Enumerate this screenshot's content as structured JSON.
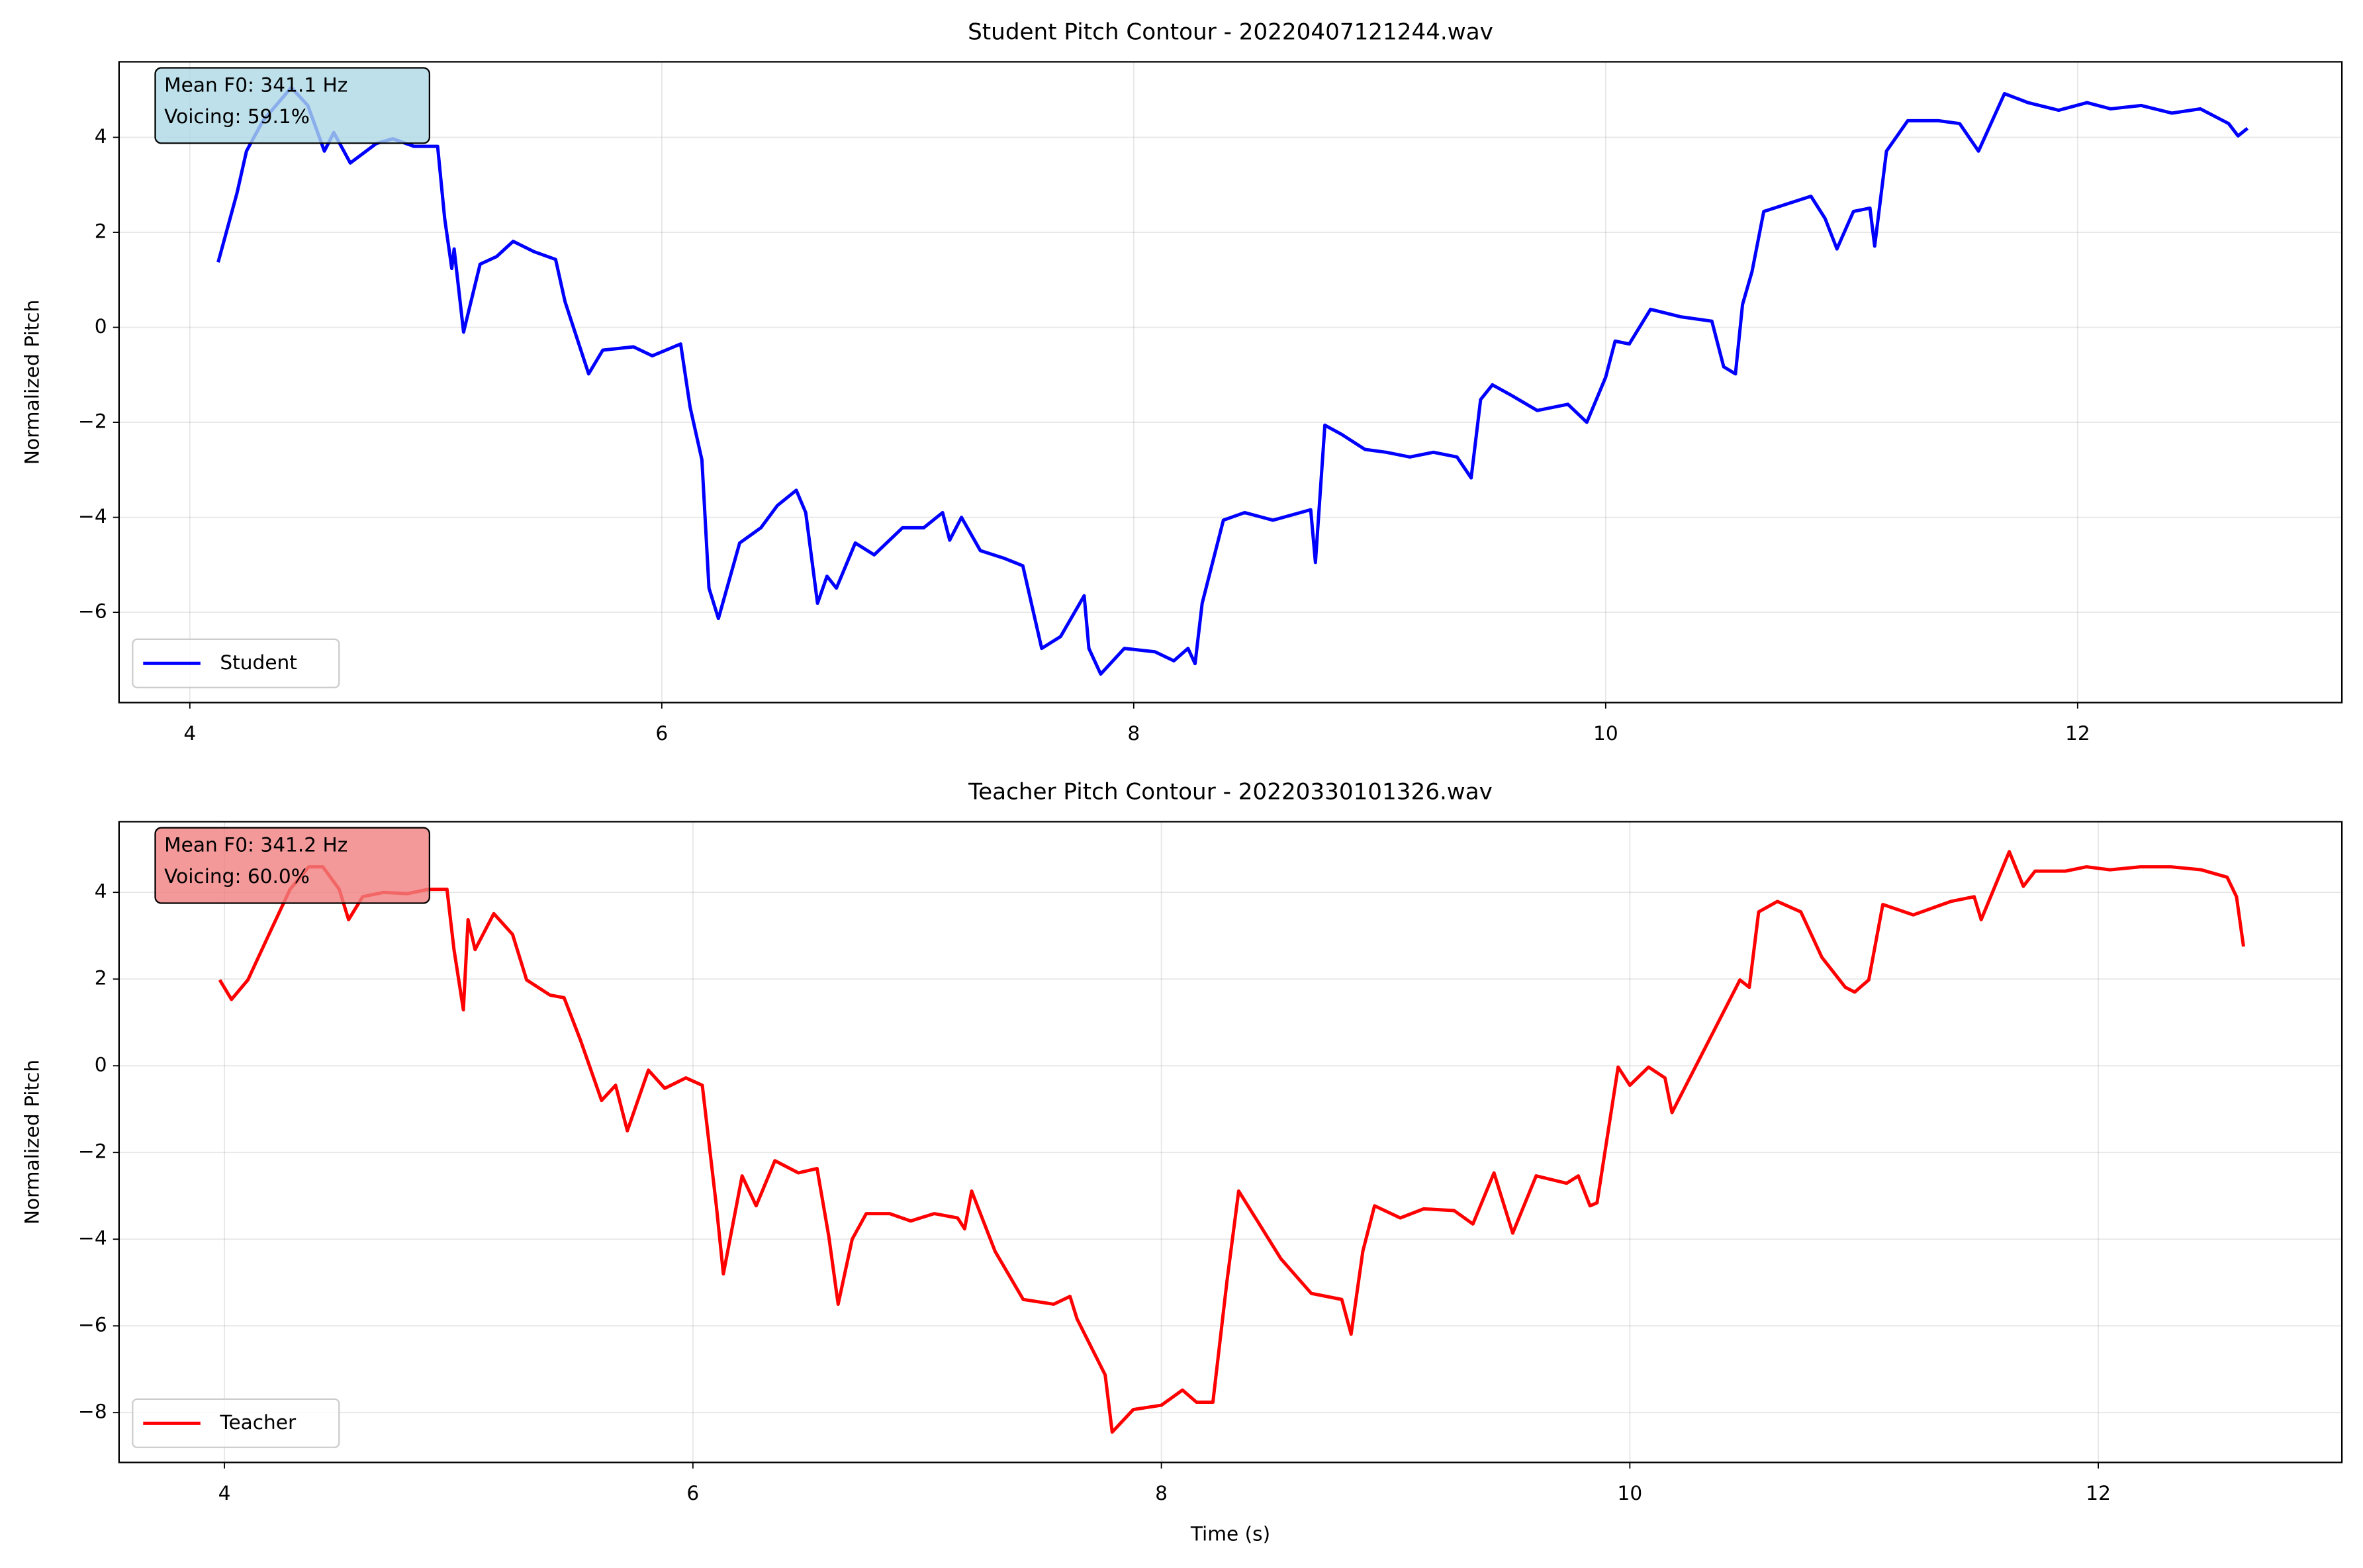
{
  "chart_data": [
    {
      "type": "line",
      "title": "Student Pitch Contour - 20220407121244.wav",
      "ylabel": "Normalized Pitch",
      "x": [
        4.12,
        4.2,
        4.24,
        4.31,
        4.43,
        4.5,
        4.57,
        4.61,
        4.68,
        4.79,
        4.86,
        4.95,
        5.05,
        5.08,
        5.11,
        5.12,
        5.16,
        5.23,
        5.3,
        5.37,
        5.46,
        5.55,
        5.59,
        5.69,
        5.75,
        5.88,
        5.96,
        6.08,
        6.12,
        6.17,
        6.2,
        6.24,
        6.33,
        6.42,
        6.49,
        6.57,
        6.61,
        6.66,
        6.7,
        6.74,
        6.82,
        6.9,
        7.02,
        7.11,
        7.19,
        7.22,
        7.27,
        7.35,
        7.45,
        7.53,
        7.61,
        7.69,
        7.79,
        7.81,
        7.86,
        7.96,
        8.09,
        8.17,
        8.23,
        8.26,
        8.29,
        8.38,
        8.47,
        8.59,
        8.75,
        8.77,
        8.81,
        8.88,
        8.98,
        9.07,
        9.17,
        9.27,
        9.37,
        9.43,
        9.47,
        9.52,
        9.6,
        9.71,
        9.84,
        9.92,
        10.0,
        10.04,
        10.1,
        10.19,
        10.32,
        10.45,
        10.5,
        10.55,
        10.58,
        10.62,
        10.67,
        10.77,
        10.87,
        10.93,
        10.98,
        11.05,
        11.12,
        11.14,
        11.19,
        11.28,
        11.41,
        11.5,
        11.58,
        11.69,
        11.79,
        11.92,
        12.04,
        12.14,
        12.27,
        12.4,
        12.52,
        12.64,
        12.68,
        12.72
      ],
      "series": [
        {
          "name": "Student",
          "color": "#0000ff",
          "values": [
            1.37,
            2.83,
            3.71,
            4.35,
            5.05,
            4.67,
            3.71,
            4.1,
            3.46,
            3.87,
            3.97,
            3.81,
            3.81,
            2.29,
            1.24,
            1.65,
            -0.1,
            1.33,
            1.49,
            1.81,
            1.59,
            1.43,
            0.54,
            -0.98,
            -0.48,
            -0.41,
            -0.6,
            -0.35,
            -1.68,
            -2.79,
            -5.49,
            -6.13,
            -4.54,
            -4.22,
            -3.75,
            -3.43,
            -3.9,
            -5.81,
            -5.24,
            -5.49,
            -4.54,
            -4.79,
            -4.22,
            -4.22,
            -3.9,
            -4.48,
            -4.0,
            -4.7,
            -4.86,
            -5.02,
            -6.76,
            -6.51,
            -5.65,
            -6.76,
            -7.3,
            -6.76,
            -6.83,
            -7.02,
            -6.76,
            -7.08,
            -5.81,
            -4.06,
            -3.9,
            -4.06,
            -3.84,
            -4.95,
            -2.06,
            -2.25,
            -2.57,
            -2.63,
            -2.73,
            -2.63,
            -2.73,
            -3.17,
            -1.52,
            -1.21,
            -1.43,
            -1.75,
            -1.62,
            -2.0,
            -1.05,
            -0.29,
            -0.35,
            0.38,
            0.22,
            0.13,
            -0.83,
            -0.98,
            0.48,
            1.17,
            2.44,
            2.6,
            2.76,
            2.29,
            1.65,
            2.44,
            2.51,
            1.71,
            3.71,
            4.35,
            4.35,
            4.29,
            3.71,
            4.92,
            4.73,
            4.57,
            4.73,
            4.6,
            4.67,
            4.51,
            4.6,
            4.29,
            4.03,
            4.19
          ]
        }
      ],
      "xlim": [
        3.7,
        13.12
      ],
      "ylim": [
        -7.9,
        5.59
      ],
      "xticks": [
        4,
        6,
        8,
        10,
        12
      ],
      "yticks": [
        {
          "value": -6,
          "label": "−6"
        },
        {
          "value": -4,
          "label": "−4"
        },
        {
          "value": -2,
          "label": "−2"
        },
        0,
        2,
        4
      ],
      "grid": true,
      "legend": "lower left",
      "annotation": [
        "Mean F0: 341.1 Hz",
        "Voicing: 59.1%"
      ],
      "annotation_color": "#add8e6"
    },
    {
      "type": "line",
      "title": "Teacher Pitch Contour - 20220330101326.wav",
      "ylabel": "Normalized Pitch",
      "xlabel": "Time (s)",
      "x": [
        3.98,
        4.03,
        4.1,
        4.19,
        4.28,
        4.36,
        4.42,
        4.49,
        4.53,
        4.59,
        4.68,
        4.78,
        4.87,
        4.95,
        4.98,
        5.02,
        5.04,
        5.07,
        5.15,
        5.23,
        5.29,
        5.39,
        5.45,
        5.52,
        5.61,
        5.67,
        5.72,
        5.81,
        5.88,
        5.97,
        6.04,
        6.1,
        6.13,
        6.21,
        6.27,
        6.35,
        6.45,
        6.53,
        6.58,
        6.62,
        6.68,
        6.74,
        6.84,
        6.93,
        7.03,
        7.13,
        7.16,
        7.19,
        7.29,
        7.41,
        7.54,
        7.61,
        7.64,
        7.76,
        7.79,
        7.88,
        8.0,
        8.09,
        8.15,
        8.22,
        8.28,
        8.33,
        8.41,
        8.51,
        8.64,
        8.77,
        8.81,
        8.86,
        8.91,
        9.02,
        9.12,
        9.25,
        9.33,
        9.42,
        9.5,
        9.6,
        9.73,
        9.78,
        9.83,
        9.86,
        9.95,
        10.0,
        10.08,
        10.15,
        10.18,
        10.47,
        10.51,
        10.55,
        10.63,
        10.73,
        10.82,
        10.92,
        10.96,
        11.02,
        11.08,
        11.21,
        11.37,
        11.47,
        11.5,
        11.62,
        11.68,
        11.73,
        11.86,
        11.95,
        12.05,
        12.18,
        12.31,
        12.44,
        12.55,
        12.59,
        12.62
      ],
      "series": [
        {
          "name": "Teacher",
          "color": "#ff0000",
          "values": [
            1.98,
            1.53,
            1.98,
            3.03,
            4.07,
            4.59,
            4.59,
            4.07,
            3.37,
            3.9,
            4.0,
            3.97,
            4.07,
            4.07,
            2.68,
            1.29,
            3.37,
            2.68,
            3.51,
            3.03,
            1.98,
            1.63,
            1.57,
            0.59,
            -0.8,
            -0.45,
            -1.5,
            -0.1,
            -0.52,
            -0.28,
            -0.45,
            -3.23,
            -4.8,
            -2.54,
            -3.23,
            -2.19,
            -2.47,
            -2.37,
            -3.93,
            -5.5,
            -4.0,
            -3.41,
            -3.41,
            -3.58,
            -3.41,
            -3.51,
            -3.76,
            -2.89,
            -4.28,
            -5.39,
            -5.5,
            -5.32,
            -5.84,
            -7.13,
            -8.45,
            -7.93,
            -7.83,
            -7.48,
            -7.76,
            -7.76,
            -4.97,
            -2.89,
            -3.58,
            -4.45,
            -5.25,
            -5.39,
            -6.19,
            -4.28,
            -3.23,
            -3.51,
            -3.3,
            -3.34,
            -3.65,
            -2.47,
            -3.86,
            -2.54,
            -2.71,
            -2.54,
            -3.23,
            -3.16,
            -0.03,
            -0.45,
            -0.03,
            -0.28,
            -1.08,
            1.98,
            1.81,
            3.55,
            3.79,
            3.55,
            2.5,
            1.81,
            1.7,
            1.98,
            3.72,
            3.48,
            3.79,
            3.9,
            3.37,
            4.94,
            4.14,
            4.49,
            4.49,
            4.59,
            4.52,
            4.59,
            4.59,
            4.52,
            4.35,
            3.9,
            2.75
          ]
        }
      ],
      "xlim": [
        3.55,
        13.04
      ],
      "ylim": [
        -9.15,
        5.63
      ],
      "xticks": [
        4,
        6,
        8,
        10,
        12
      ],
      "yticks": [
        {
          "value": -8,
          "label": "−8"
        },
        {
          "value": -6,
          "label": "−6"
        },
        {
          "value": -4,
          "label": "−4"
        },
        {
          "value": -2,
          "label": "−2"
        },
        0,
        2,
        4
      ],
      "grid": true,
      "legend": "lower left",
      "annotation": [
        "Mean F0: 341.2 Hz",
        "Voicing: 60.0%"
      ],
      "annotation_color": "#f08080"
    }
  ]
}
